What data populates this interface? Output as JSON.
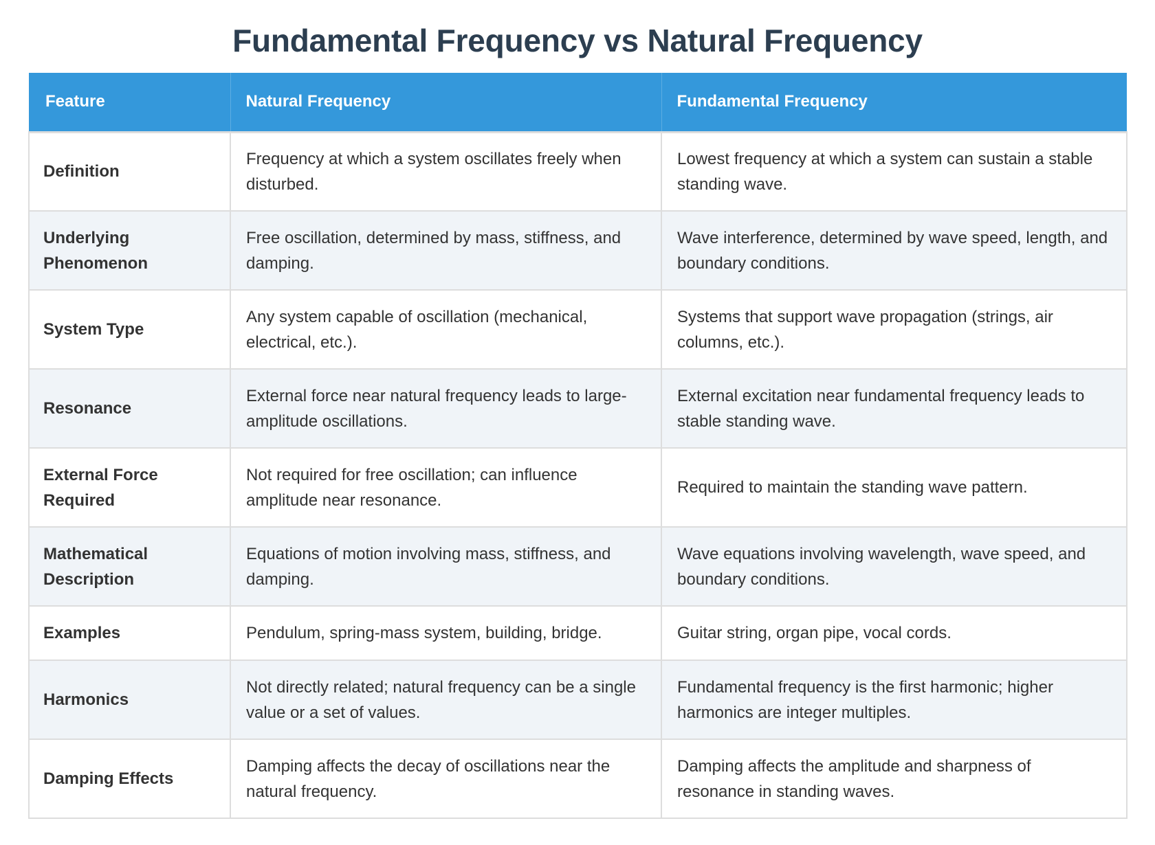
{
  "title": "Fundamental Frequency vs Natural Frequency",
  "colors": {
    "title": "#2c3e50",
    "header_bg": "#3498db",
    "header_text": "#ffffff",
    "row_alt_bg": "#f0f4f8",
    "border": "#dddddd",
    "body_text": "#333333"
  },
  "table": {
    "headers": [
      "Feature",
      "Natural Frequency",
      "Fundamental Frequency"
    ],
    "rows": [
      {
        "feature": "Definition",
        "natural": "Frequency at which a system oscillates freely when disturbed.",
        "fundamental": "Lowest frequency at which a system can sustain a stable standing wave."
      },
      {
        "feature": "Underlying Phenomenon",
        "natural": "Free oscillation, determined by mass, stiffness, and damping.",
        "fundamental": "Wave interference, determined by wave speed, length, and boundary conditions."
      },
      {
        "feature": "System Type",
        "natural": "Any system capable of oscillation (mechanical, electrical, etc.).",
        "fundamental": "Systems that support wave propagation (strings, air columns, etc.)."
      },
      {
        "feature": "Resonance",
        "natural": "External force near natural frequency leads to large-amplitude oscillations.",
        "fundamental": "External excitation near fundamental frequency leads to stable standing wave."
      },
      {
        "feature": "External Force Required",
        "natural": "Not required for free oscillation; can influence amplitude near resonance.",
        "fundamental": "Required to maintain the standing wave pattern."
      },
      {
        "feature": "Mathematical Description",
        "natural": "Equations of motion involving mass, stiffness, and damping.",
        "fundamental": "Wave equations involving wavelength, wave speed, and boundary conditions."
      },
      {
        "feature": "Examples",
        "natural": "Pendulum, spring-mass system, building, bridge.",
        "fundamental": "Guitar string, organ pipe, vocal cords."
      },
      {
        "feature": "Harmonics",
        "natural": "Not directly related; natural frequency can be a single value or a set of values.",
        "fundamental": "Fundamental frequency is the first harmonic; higher harmonics are integer multiples."
      },
      {
        "feature": "Damping Effects",
        "natural": "Damping affects the decay of oscillations near the natural frequency.",
        "fundamental": "Damping affects the amplitude and sharpness of resonance in standing waves."
      }
    ]
  }
}
